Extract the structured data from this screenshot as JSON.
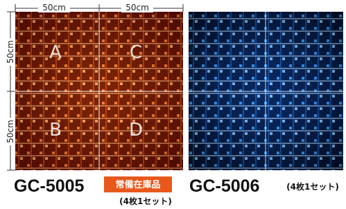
{
  "left_product": {
    "top_dimensions": [
      "50cm",
      "50cm"
    ],
    "side_dimensions": [
      "50cm",
      "50cm"
    ],
    "tiles": [
      "A",
      "C",
      "B",
      "D"
    ],
    "code": "GC-5005",
    "badge": "常備在庫品",
    "set_note": "(4枚1セット)"
  },
  "right_product": {
    "code": "GC-5006",
    "set_note": "(4枚1セット)"
  }
}
